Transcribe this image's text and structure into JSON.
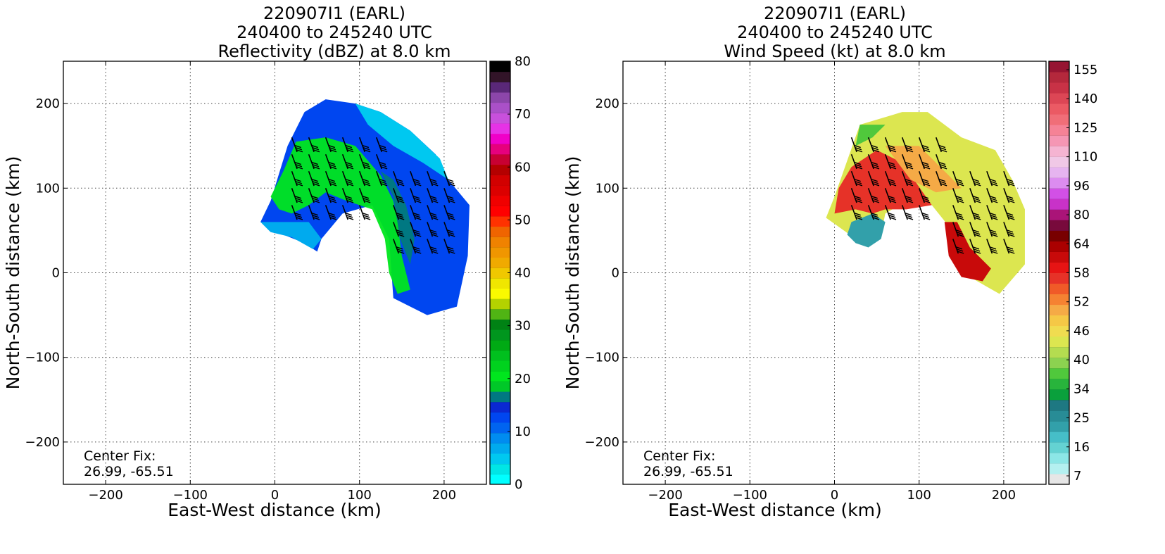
{
  "chart_data": [
    {
      "type": "heatmap",
      "title": [
        "220907I1 (EARL)",
        "240400 to 245240 UTC",
        "Reflectivity (dBZ) at 8.0 km"
      ],
      "xlabel": "East-West distance (km)",
      "ylabel": "North-South distance (km)",
      "xlim": [
        -250,
        250
      ],
      "ylim": [
        -250,
        250
      ],
      "xticks": [
        -200,
        -100,
        0,
        100,
        200
      ],
      "yticks": [
        -200,
        -100,
        0,
        100,
        200
      ],
      "grid": true,
      "annotation": [
        "Center Fix:",
        "26.99, -65.51"
      ],
      "colorbar": {
        "ticks": [
          0,
          10,
          20,
          30,
          40,
          50,
          60,
          70,
          80
        ],
        "colors": [
          "#00ffff",
          "#00e6e6",
          "#00c8f0",
          "#00aaee",
          "#008cf0",
          "#0064f0",
          "#0046f0",
          "#0a28d2",
          "#007882",
          "#00c828",
          "#00e61e",
          "#00d21e",
          "#00c01e",
          "#00aa14",
          "#00961e",
          "#008214",
          "#50b414",
          "#b4d200",
          "#fafa00",
          "#f0e600",
          "#f0c800",
          "#f0aa00",
          "#f09600",
          "#f08200",
          "#f06400",
          "#ff3200",
          "#ff0000",
          "#f00000",
          "#dc0000",
          "#d20000",
          "#b40000",
          "#c80032",
          "#e6007d",
          "#f000c8",
          "#e632e6",
          "#c850dc",
          "#aa50c8",
          "#8c46aa",
          "#5a2878",
          "#321428",
          "#000000"
        ]
      },
      "wind_barbs": true
    },
    {
      "type": "heatmap",
      "title": [
        "220907I1 (EARL)",
        "240400 to 245240 UTC",
        "Wind Speed (kt) at 8.0 km"
      ],
      "xlabel": "East-West distance (km)",
      "ylabel": "North-South distance (km)",
      "xlim": [
        -250,
        250
      ],
      "ylim": [
        -250,
        250
      ],
      "xticks": [
        -200,
        -100,
        0,
        100,
        200
      ],
      "yticks": [
        -200,
        -100,
        0,
        100,
        200
      ],
      "grid": true,
      "annotation": [
        "Center Fix:",
        "26.99, -65.51"
      ],
      "colorbar": {
        "ticks": [
          7,
          16,
          25,
          34,
          40,
          46,
          52,
          58,
          64,
          80,
          96,
          110,
          125,
          140,
          155
        ],
        "colors": [
          "#e6e6e6",
          "#b4f0f0",
          "#8ce6e6",
          "#64d2d2",
          "#46bec8",
          "#32a0aa",
          "#288c96",
          "#1e7882",
          "#0aa03c",
          "#28b43c",
          "#50c83c",
          "#8cd250",
          "#b4dc50",
          "#dce650",
          "#f0dc50",
          "#f5c846",
          "#f5aa46",
          "#f58232",
          "#f05a28",
          "#e63228",
          "#e61414",
          "#c80a0a",
          "#aa0000",
          "#780000",
          "#780a3c",
          "#aa1478",
          "#c832c8",
          "#d250e6",
          "#dc8cf0",
          "#e6b4f0",
          "#f0c8e6",
          "#f5b4d2",
          "#f596b4",
          "#f58296",
          "#f06e78",
          "#eb5a64",
          "#dc4655",
          "#c83246",
          "#b4283c",
          "#961432"
        ]
      },
      "wind_barbs": true
    }
  ]
}
